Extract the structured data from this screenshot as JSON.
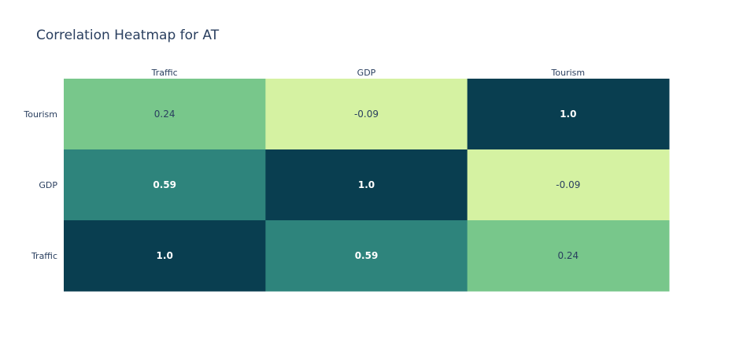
{
  "chart_data": {
    "type": "heatmap",
    "title": "Correlation Heatmap for AT",
    "x_labels": [
      "Traffic",
      "GDP",
      "Tourism"
    ],
    "y_labels_top_to_bottom": [
      "Tourism",
      "GDP",
      "Traffic"
    ],
    "values": [
      [
        0.24,
        -0.09,
        1.0
      ],
      [
        0.59,
        1.0,
        -0.09
      ],
      [
        1.0,
        0.59,
        0.24
      ]
    ],
    "value_labels": [
      [
        "0.24",
        "-0.09",
        "1.0"
      ],
      [
        "0.59",
        "1.0",
        "-0.09"
      ],
      [
        "1.0",
        "0.59",
        "0.24"
      ]
    ],
    "colorscale": {
      "stops": [
        {
          "value": -0.09,
          "color": "#d5f2a2"
        },
        {
          "value": 0.24,
          "color": "#78c78b"
        },
        {
          "value": 0.59,
          "color": "#2e847c"
        },
        {
          "value": 1.0,
          "color": "#093e50"
        }
      ]
    },
    "text_colors": {
      "dark": "#2a3f5f",
      "light": "#ffffff"
    },
    "x_axis_position": "top",
    "grid": false,
    "legend": "none"
  }
}
